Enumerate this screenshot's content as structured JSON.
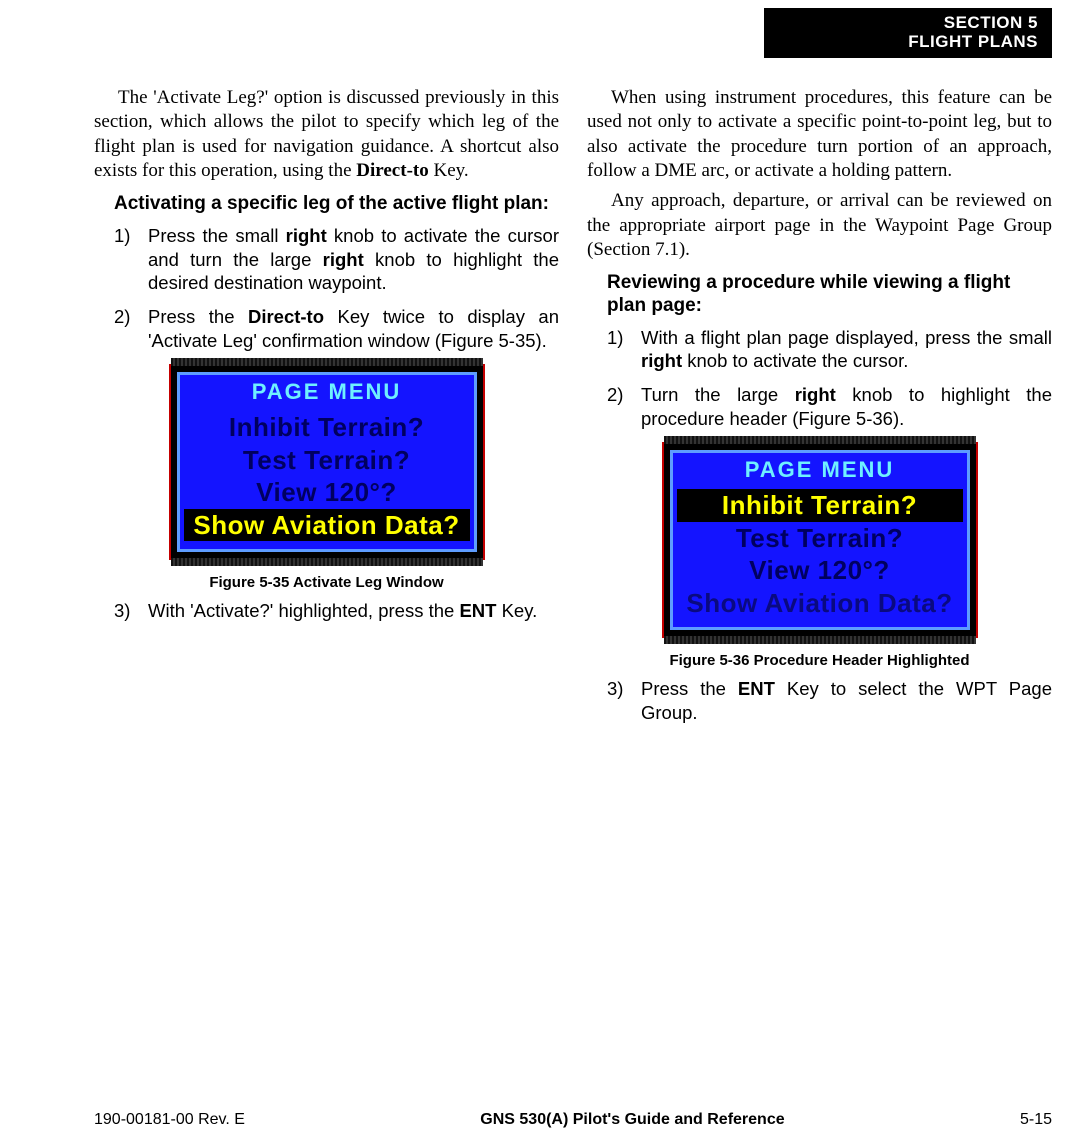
{
  "header": {
    "line1": "SECTION 5",
    "line2": "FLIGHT PLANS"
  },
  "left": {
    "intro_html": "The 'Activate Leg?' option is discussed previously in this section, which allows the pilot to specify which leg of the flight plan is used for navigation guidance.  A shortcut also exists for this operation, using the <b>Direct-to</b> Key.",
    "heading": "Activating a specific leg of the active flight plan:",
    "items": [
      {
        "num": "1)",
        "html": "Press the small <b>right</b> knob to activate the cursor and turn the large <b>right</b> knob to highlight the desired destination waypoint."
      },
      {
        "num": "2)",
        "html": "Press the <b>Direct-to</b> Key twice to display an 'Activate Leg' confirmation window (Figure 5-35)."
      }
    ],
    "figure": {
      "title": "PAGE MENU",
      "rows": [
        {
          "text": "Inhibit Terrain?",
          "style": "normal"
        },
        {
          "text": "Test Terrain?",
          "style": "normal"
        },
        {
          "text": "View 120°?",
          "style": "normal"
        },
        {
          "text": "Show Aviation Data?",
          "style": "selected"
        }
      ],
      "caption": "Figure 5-35  Activate Leg Window"
    },
    "after": [
      {
        "num": "3)",
        "html": "With 'Activate?' highlighted, press the <b>ENT</b> Key."
      }
    ]
  },
  "right": {
    "para1_html": "When using instrument procedures, this feature can be used not only to activate a specific point-to-point leg, but to also activate the procedure turn portion of an approach, follow a DME arc, or activate a holding pattern.",
    "para2_html": "Any approach, departure, or arrival can be reviewed on the appropriate airport page in the Waypoint Page Group (Section 7.1).",
    "heading": "Reviewing a procedure while viewing a flight plan page:",
    "items": [
      {
        "num": "1)",
        "html": "With a flight plan page displayed, press the small <b>right</b> knob to activate the cursor."
      },
      {
        "num": "2)",
        "html": "Turn the large <b>right</b> knob to highlight the procedure header (Figure 5-36)."
      }
    ],
    "figure": {
      "title": "PAGE MENU",
      "rows": [
        {
          "text": "Inhibit Terrain?",
          "style": "selected"
        },
        {
          "text": "Test Terrain?",
          "style": "normal"
        },
        {
          "text": "View 120°?",
          "style": "normal"
        },
        {
          "text": "Show Aviation Data?",
          "style": "dimmed"
        }
      ],
      "caption": "Figure 5-36  Procedure Header Highlighted"
    },
    "after": [
      {
        "num": "3)",
        "html": "Press the <b>ENT</b> Key to select the WPT Page Group."
      }
    ]
  },
  "footer": {
    "left": "190-00181-00  Rev. E",
    "center": "GNS 530(A) Pilot's Guide and Reference",
    "right": "5-15"
  },
  "colors": {
    "header_bg": "#000000",
    "header_fg": "#ffffff",
    "screen_bg": "#1414ff",
    "screen_border": "#5e9dff",
    "screen_title": "#6ff0ff",
    "item_normal": "#000060",
    "item_selected_bg": "#000000",
    "item_selected_fg": "#ffff00",
    "item_dimmed": "#0a0a80",
    "device_border": "#c40000"
  }
}
